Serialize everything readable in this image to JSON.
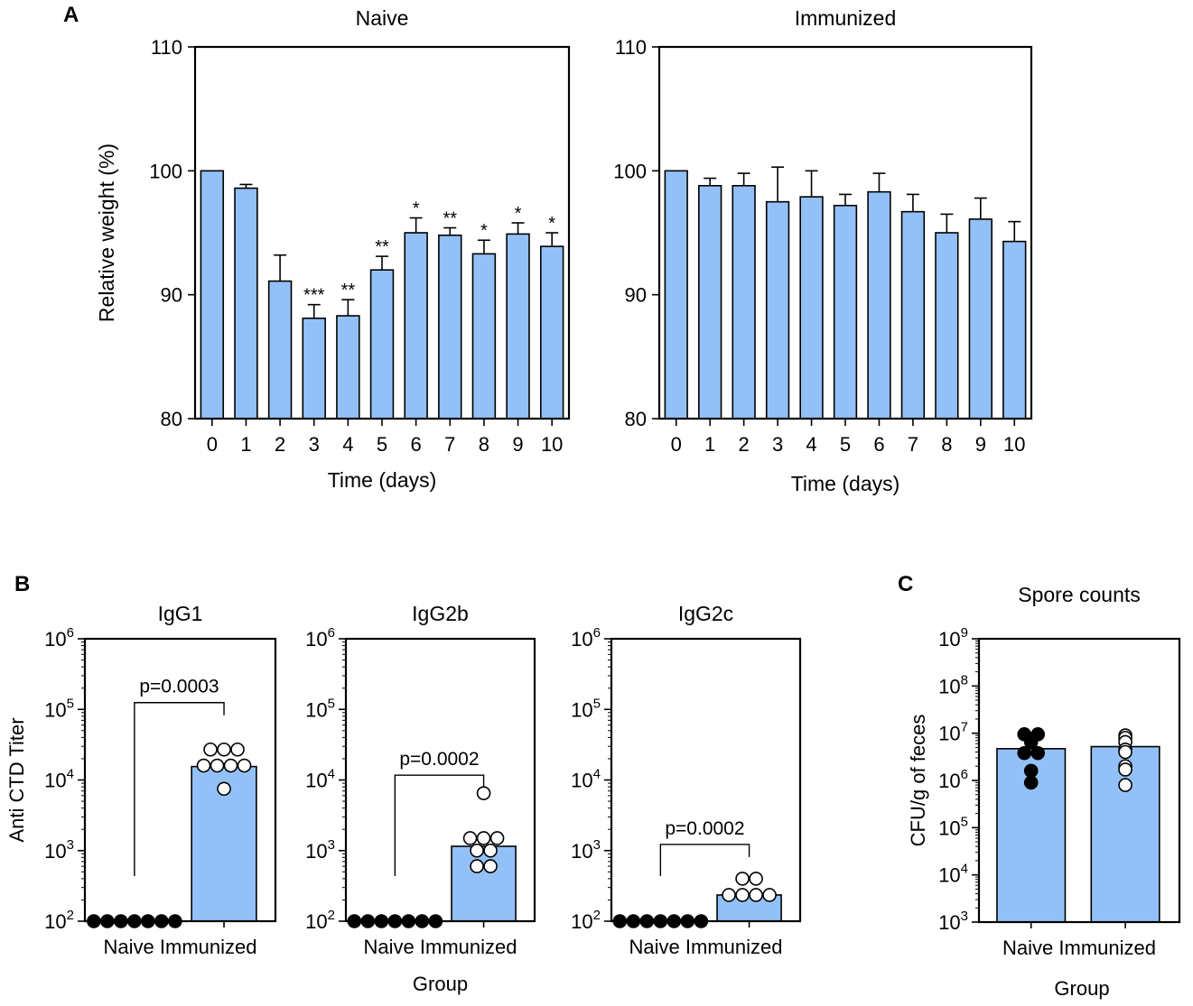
{
  "panel_letters": [
    "A",
    "B",
    "C"
  ],
  "colors": {
    "bar_fill": "#93c1f7",
    "stroke": "#000000",
    "filled_dot": "#000000",
    "open_dot": "#ffffff"
  },
  "chart_data": [
    {
      "id": "A-naive",
      "type": "bar",
      "title": "Naive",
      "xlabel": "Time (days)",
      "ylabel": "Relative weight (%)",
      "ylim": [
        80,
        110
      ],
      "yticks": [
        "80",
        "90",
        "100",
        "110"
      ],
      "categories": [
        "0",
        "1",
        "2",
        "3",
        "4",
        "5",
        "6",
        "7",
        "8",
        "9",
        "10"
      ],
      "values": [
        100,
        98.6,
        91.1,
        88.1,
        88.3,
        92.0,
        95.0,
        94.8,
        93.3,
        94.9,
        93.9
      ],
      "error": [
        0,
        0.3,
        2.1,
        1.1,
        1.3,
        1.1,
        1.2,
        0.6,
        1.1,
        0.9,
        1.1
      ],
      "annotations": [
        "",
        "",
        "",
        "***",
        "**",
        "**",
        "*",
        "**",
        "*",
        "*",
        "*"
      ]
    },
    {
      "id": "A-immunized",
      "type": "bar",
      "title": "Immunized",
      "xlabel": "Time (days)",
      "ylabel": "",
      "ylim": [
        80,
        110
      ],
      "yticks": [
        "80",
        "90",
        "100",
        "110"
      ],
      "categories": [
        "0",
        "1",
        "2",
        "3",
        "4",
        "5",
        "6",
        "7",
        "8",
        "9",
        "10"
      ],
      "values": [
        100,
        98.8,
        98.8,
        97.5,
        97.9,
        97.2,
        98.3,
        96.7,
        95.0,
        96.1,
        94.3
      ],
      "error": [
        0,
        0.6,
        1.0,
        2.8,
        2.1,
        0.9,
        1.5,
        1.4,
        1.5,
        1.7,
        1.6
      ],
      "annotations": [
        "",
        "",
        "",
        "",
        "",
        "",
        "",
        "",
        "",
        "",
        ""
      ]
    },
    {
      "id": "B-igg1",
      "type": "bar",
      "title": "IgG1",
      "ylabel": "Anti CTD Titer",
      "log_scale": true,
      "ylim_exp": [
        2,
        6
      ],
      "ytick_exps": [
        "2",
        "3",
        "4",
        "5",
        "6"
      ],
      "categories": [
        "Naive",
        "Immunized"
      ],
      "values": [
        100,
        15500
      ],
      "points": [
        [
          100,
          100,
          100,
          100,
          100,
          100,
          100
        ],
        [
          27000,
          27000,
          27000,
          16000,
          16000,
          16000,
          16000,
          7500
        ]
      ],
      "pvalue": "p=0.0003"
    },
    {
      "id": "B-igg2b",
      "type": "bar",
      "title": "IgG2b",
      "log_scale": true,
      "ylim_exp": [
        2,
        6
      ],
      "ytick_exps": [
        "2",
        "3",
        "4",
        "5",
        "6"
      ],
      "categories": [
        "Naive",
        "Immunized"
      ],
      "values": [
        100,
        1150
      ],
      "points": [
        [
          100,
          100,
          100,
          100,
          100,
          100,
          100
        ],
        [
          6500,
          1500,
          1500,
          1500,
          1000,
          1000,
          600,
          600
        ]
      ],
      "pvalue": "p=0.0002",
      "group_label": "Group"
    },
    {
      "id": "B-igg2c",
      "type": "bar",
      "title": "IgG2c",
      "log_scale": true,
      "ylim_exp": [
        2,
        6
      ],
      "ytick_exps": [
        "2",
        "3",
        "4",
        "5",
        "6"
      ],
      "categories": [
        "Naive",
        "Immunized"
      ],
      "values": [
        100,
        235
      ],
      "points": [
        [
          100,
          100,
          100,
          100,
          100,
          100,
          100
        ],
        [
          400,
          400,
          235,
          235,
          235,
          235
        ]
      ],
      "pvalue": "p=0.0002"
    },
    {
      "id": "C-spores",
      "type": "bar",
      "title": "Spore counts",
      "ylabel": "CFU/g of feces",
      "log_scale": true,
      "ylim_exp": [
        3,
        9
      ],
      "ytick_exps": [
        "3",
        "4",
        "5",
        "6",
        "7",
        "8",
        "9"
      ],
      "categories": [
        "Naive",
        "Immunized"
      ],
      "values": [
        4700000,
        5200000
      ],
      "points": [
        [
          9500000,
          9500000,
          6500000,
          3800000,
          3800000,
          1600000,
          900000
        ],
        [
          9000000,
          8000000,
          6500000,
          4500000,
          4000000,
          2000000,
          1700000,
          800000
        ]
      ],
      "group_label": "Group"
    }
  ]
}
